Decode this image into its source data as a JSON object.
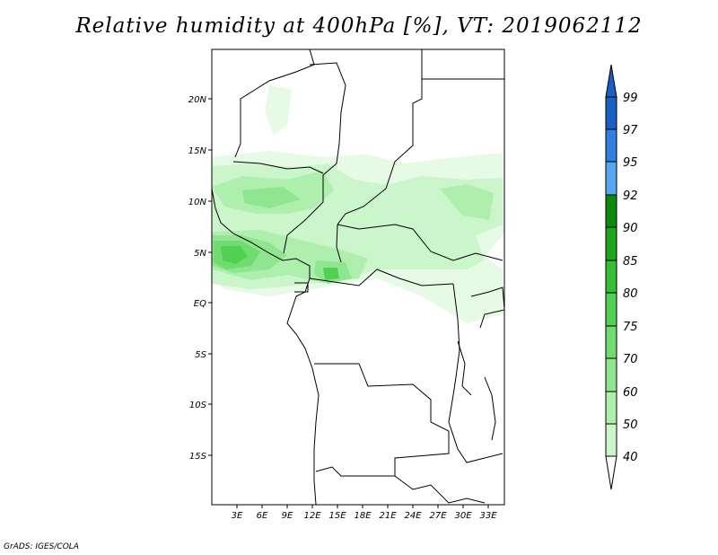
{
  "title": "Relative humidity at 400hPa [%], VT: 2019062112",
  "credit": "GrADS: IGES/COLA",
  "lat_labels": [
    "20N",
    "15N",
    "10N",
    "5N",
    "EQ",
    "5S",
    "10S",
    "15S"
  ],
  "lon_labels": [
    "3E",
    "6E",
    "9E",
    "12E",
    "15E",
    "18E",
    "21E",
    "24E",
    "27E",
    "30E",
    "33E"
  ],
  "colorbar": {
    "labels": [
      "99",
      "97",
      "95",
      "92",
      "90",
      "85",
      "80",
      "75",
      "70",
      "60",
      "50",
      "40"
    ],
    "colors": [
      "#1a5fc4",
      "#2f7fe0",
      "#58a7ee",
      "#0b8a0b",
      "#1da51d",
      "#36be36",
      "#52d052",
      "#70dc70",
      "#90e690",
      "#aeefae",
      "#cbf5cb",
      "#e6fae6"
    ]
  },
  "humidity_colors": {
    "rh40_50": "#e6fae6",
    "rh50_60": "#cbf5cb",
    "rh60_70": "#aeefae",
    "rh70_75": "#90e690",
    "rh75_80": "#70dc70",
    "rh80_85": "#52d052"
  }
}
